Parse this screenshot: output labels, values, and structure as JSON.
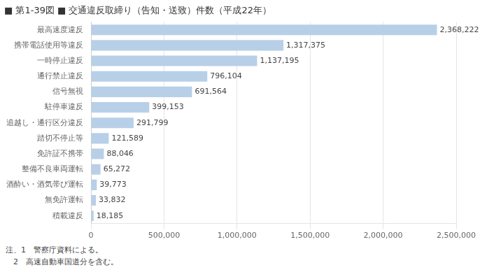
{
  "chart_data": {
    "type": "bar",
    "orientation": "horizontal",
    "title": "■ 第1-39図 ■ 交通違反取締り（告知・送致）件数（平成22年）",
    "categories": [
      "最高速度違反",
      "携帯電話使用等違反",
      "一時停止違反",
      "通行禁止違反",
      "信号無視",
      "駐停車違反",
      "追越し・通行区分違反",
      "踏切不停止等",
      "免許証不携帯",
      "整備不良車両運転",
      "酒酔い・酒気帯び運転",
      "無免許運転",
      "積載違反"
    ],
    "values": [
      2368222,
      1317375,
      1137195,
      796104,
      691564,
      399153,
      291799,
      121589,
      88046,
      65272,
      39773,
      33832,
      18185
    ],
    "value_labels": [
      "2,368,222",
      "1,317,375",
      "1,137,195",
      "796,104",
      "691,564",
      "399,153",
      "291,799",
      "121,589",
      "88,046",
      "65,272",
      "39,773",
      "33,832",
      "18,185"
    ],
    "data_labels": true,
    "color": "#b8cfe8",
    "xlim": [
      0,
      2500000
    ],
    "xticks": [
      0,
      {
        "value": 500000,
        "label": "500,000"
      },
      {
        "value": 1000000,
        "label": "1,000,000"
      },
      {
        "value": 1500000,
        "label": "1,500,000"
      },
      {
        "value": 2000000,
        "label": "2,000,000"
      },
      {
        "value": 2500000,
        "label": "2,500,000"
      }
    ],
    "grid": true,
    "annotations": [
      "注、1　警察庁資料による。",
      "　2　高速自動車国道分を含む。"
    ]
  }
}
